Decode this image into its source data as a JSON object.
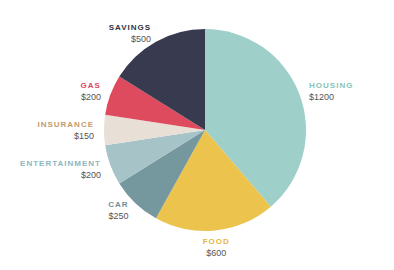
{
  "chart_data": {
    "type": "pie",
    "categories": [
      "HOUSING",
      "FOOD",
      "CAR",
      "ENTERTAINMENT",
      "INSURANCE",
      "GAS",
      "SAVINGS"
    ],
    "values": [
      1200,
      600,
      250,
      200,
      150,
      200,
      500
    ],
    "value_labels": [
      "$1200",
      "$600",
      "$250",
      "$200",
      "$150",
      "$200",
      "$500"
    ],
    "data_labels": true,
    "colors": [
      "#9ecfc8",
      "#ecc44d",
      "#75979e",
      "#a6c3c8",
      "#e8e0d6",
      "#de4a5e",
      "#383b50"
    ]
  }
}
